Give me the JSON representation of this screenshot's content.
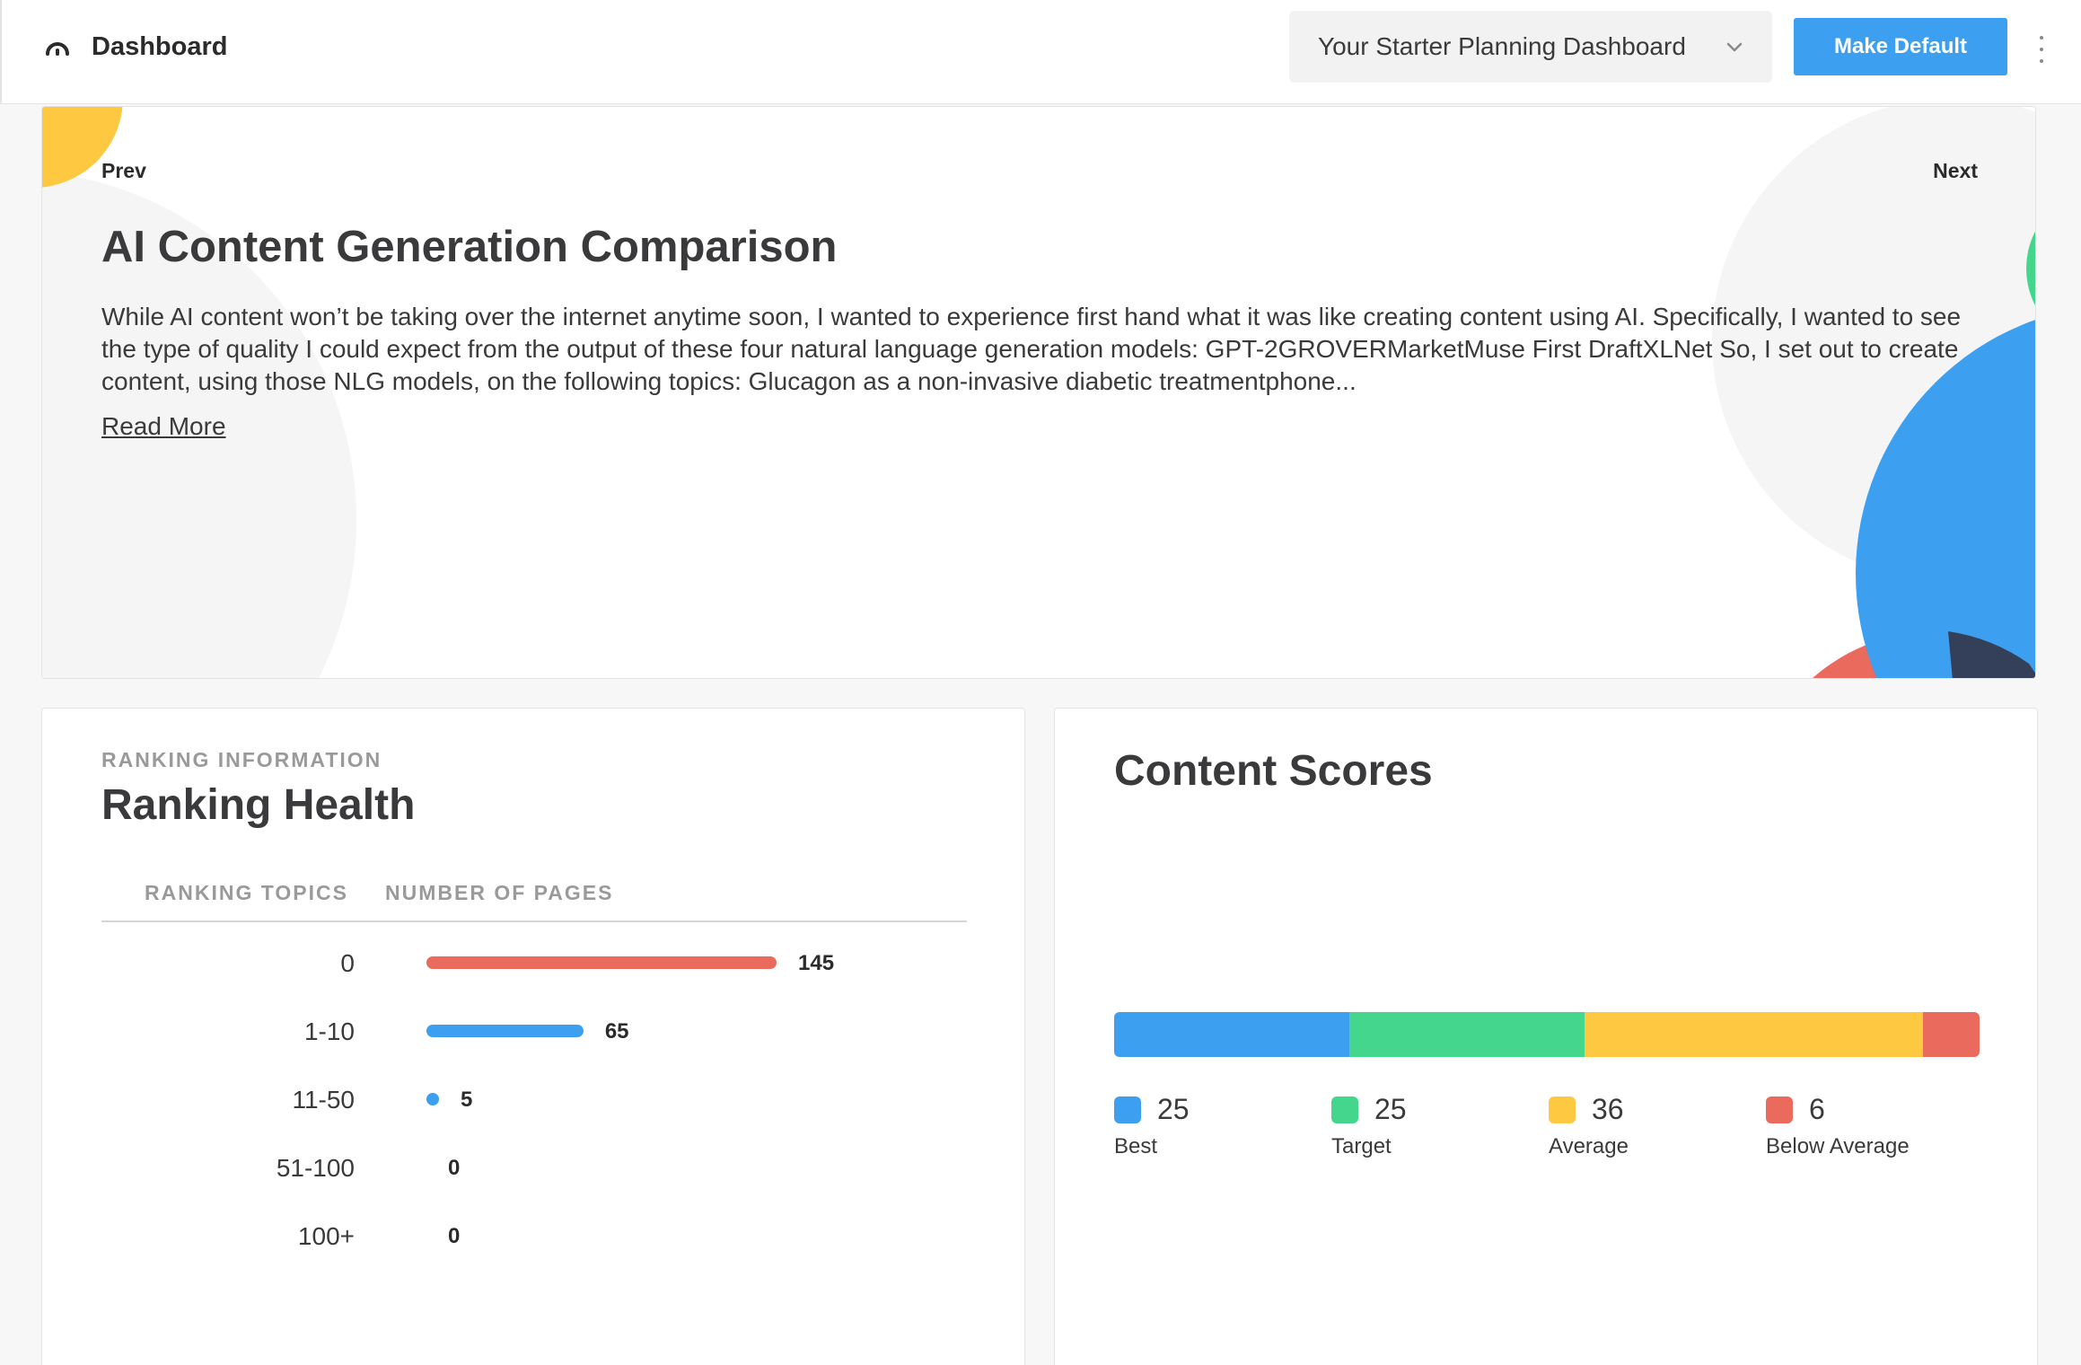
{
  "header": {
    "title": "Dashboard",
    "dashboard_select": "Your Starter Planning Dashboard",
    "make_default_label": "Make Default"
  },
  "carousel": {
    "prev_label": "Prev",
    "next_label": "Next",
    "title": "AI Content Generation Comparison",
    "body": "While AI content won’t be taking over the internet anytime soon, I wanted to experience first hand what it was like creating content using AI. Specifically, I wanted to see the type of quality I could expect from the output of these four natural language generation models: GPT-2GROVERMarketMuse First DraftXLNet So, I set out to create content, using those NLG models, on the following topics: Glucagon as a non-invasive diabetic treatmentphone...",
    "read_more_label": "Read More"
  },
  "ranking": {
    "eyebrow": "RANKING INFORMATION",
    "title": "Ranking Health",
    "col_topics": "RANKING TOPICS",
    "col_pages": "NUMBER OF PAGES",
    "rows": [
      {
        "label": "0",
        "value": "145",
        "count": 145,
        "color": "#ea6b5e"
      },
      {
        "label": "1-10",
        "value": "65",
        "count": 65,
        "color": "#3d9ff0"
      },
      {
        "label": "11-50",
        "value": "5",
        "count": 5,
        "color": "#3d9ff0"
      },
      {
        "label": "51-100",
        "value": "0",
        "count": 0,
        "color": "#3d9ff0"
      },
      {
        "label": "100+",
        "value": "0",
        "count": 0,
        "color": "#3d9ff0"
      }
    ]
  },
  "scores": {
    "title": "Content Scores",
    "items": [
      {
        "label": "Best",
        "value": "25",
        "count": 25,
        "color": "#3d9ff0"
      },
      {
        "label": "Target",
        "value": "25",
        "count": 25,
        "color": "#43d68c"
      },
      {
        "label": "Average",
        "value": "36",
        "count": 36,
        "color": "#fec941"
      },
      {
        "label": "Below Average",
        "value": "6",
        "count": 6,
        "color": "#ea6b5e"
      }
    ]
  },
  "icons": {
    "brand": "gauge-icon",
    "dropdown": "chevron-down-icon",
    "menu": "kebab-menu-icon"
  }
}
